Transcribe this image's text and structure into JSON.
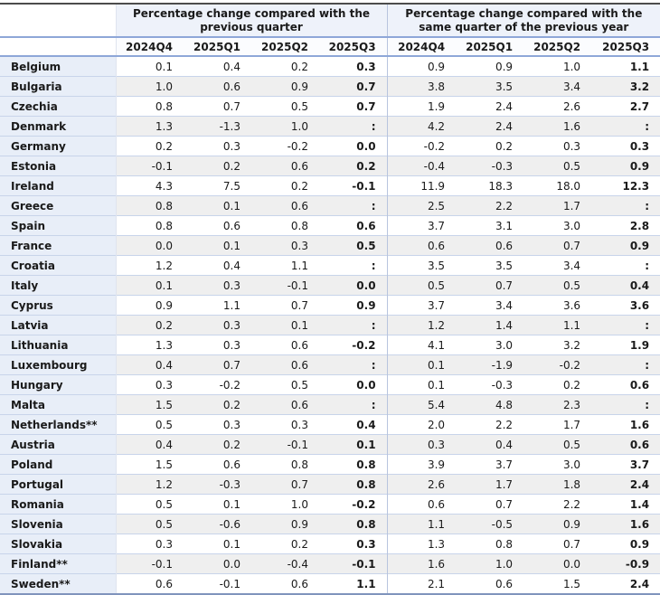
{
  "colors": {
    "top_border": "#4c4c4c",
    "header_separator_blue": "#8ea7d8",
    "group_header_bg": "#eef2fa",
    "quarter_header_bg": "#fbfcfe",
    "country_column_bg": "#e8eef8",
    "alt_row_bg": "#efefef",
    "row_line": "#c8d4ea",
    "group_divider": "#b8c4de",
    "bottom_border": "#8094bc"
  },
  "chart_data": {
    "type": "table",
    "missing_value_symbol": ":",
    "column_groups": [
      {
        "label": "Percentage change compared with the previous quarter",
        "lines": [
          "Percentage change compared with the",
          "previous quarter"
        ],
        "columns": [
          "2024Q4",
          "2025Q1",
          "2025Q2",
          "2025Q3"
        ]
      },
      {
        "label": "Percentage change compared with the same quarter of the previous year",
        "lines": [
          "Percentage change compared with the",
          "same quarter of the previous year"
        ],
        "columns": [
          "2024Q4",
          "2025Q1",
          "2025Q2",
          "2025Q3"
        ]
      }
    ],
    "rows": [
      {
        "country": "Belgium",
        "qoq": [
          "0.1",
          "0.4",
          "0.2",
          "0.3"
        ],
        "yoy": [
          "0.9",
          "0.9",
          "1.0",
          "1.1"
        ]
      },
      {
        "country": "Bulgaria",
        "qoq": [
          "1.0",
          "0.6",
          "0.9",
          "0.7"
        ],
        "yoy": [
          "3.8",
          "3.5",
          "3.4",
          "3.2"
        ]
      },
      {
        "country": "Czechia",
        "qoq": [
          "0.8",
          "0.7",
          "0.5",
          "0.7"
        ],
        "yoy": [
          "1.9",
          "2.4",
          "2.6",
          "2.7"
        ]
      },
      {
        "country": "Denmark",
        "qoq": [
          "1.3",
          "-1.3",
          "1.0",
          ":"
        ],
        "yoy": [
          "4.2",
          "2.4",
          "1.6",
          ":"
        ]
      },
      {
        "country": "Germany",
        "qoq": [
          "0.2",
          "0.3",
          "-0.2",
          "0.0"
        ],
        "yoy": [
          "-0.2",
          "0.2",
          "0.3",
          "0.3"
        ]
      },
      {
        "country": "Estonia",
        "qoq": [
          "-0.1",
          "0.2",
          "0.6",
          "0.2"
        ],
        "yoy": [
          "-0.4",
          "-0.3",
          "0.5",
          "0.9"
        ]
      },
      {
        "country": "Ireland",
        "qoq": [
          "4.3",
          "7.5",
          "0.2",
          "-0.1"
        ],
        "yoy": [
          "11.9",
          "18.3",
          "18.0",
          "12.3"
        ]
      },
      {
        "country": "Greece",
        "qoq": [
          "0.8",
          "0.1",
          "0.6",
          ":"
        ],
        "yoy": [
          "2.5",
          "2.2",
          "1.7",
          ":"
        ]
      },
      {
        "country": "Spain",
        "qoq": [
          "0.8",
          "0.6",
          "0.8",
          "0.6"
        ],
        "yoy": [
          "3.7",
          "3.1",
          "3.0",
          "2.8"
        ]
      },
      {
        "country": "France",
        "qoq": [
          "0.0",
          "0.1",
          "0.3",
          "0.5"
        ],
        "yoy": [
          "0.6",
          "0.6",
          "0.7",
          "0.9"
        ]
      },
      {
        "country": "Croatia",
        "qoq": [
          "1.2",
          "0.4",
          "1.1",
          ":"
        ],
        "yoy": [
          "3.5",
          "3.5",
          "3.4",
          ":"
        ]
      },
      {
        "country": "Italy",
        "qoq": [
          "0.1",
          "0.3",
          "-0.1",
          "0.0"
        ],
        "yoy": [
          "0.5",
          "0.7",
          "0.5",
          "0.4"
        ]
      },
      {
        "country": "Cyprus",
        "qoq": [
          "0.9",
          "1.1",
          "0.7",
          "0.9"
        ],
        "yoy": [
          "3.7",
          "3.4",
          "3.6",
          "3.6"
        ]
      },
      {
        "country": "Latvia",
        "qoq": [
          "0.2",
          "0.3",
          "0.1",
          ":"
        ],
        "yoy": [
          "1.2",
          "1.4",
          "1.1",
          ":"
        ]
      },
      {
        "country": "Lithuania",
        "qoq": [
          "1.3",
          "0.3",
          "0.6",
          "-0.2"
        ],
        "yoy": [
          "4.1",
          "3.0",
          "3.2",
          "1.9"
        ]
      },
      {
        "country": "Luxembourg",
        "qoq": [
          "0.4",
          "0.7",
          "0.6",
          ":"
        ],
        "yoy": [
          "0.1",
          "-1.9",
          "-0.2",
          ":"
        ]
      },
      {
        "country": "Hungary",
        "qoq": [
          "0.3",
          "-0.2",
          "0.5",
          "0.0"
        ],
        "yoy": [
          "0.1",
          "-0.3",
          "0.2",
          "0.6"
        ]
      },
      {
        "country": "Malta",
        "qoq": [
          "1.5",
          "0.2",
          "0.6",
          ":"
        ],
        "yoy": [
          "5.4",
          "4.8",
          "2.3",
          ":"
        ]
      },
      {
        "country": "Netherlands**",
        "qoq": [
          "0.5",
          "0.3",
          "0.3",
          "0.4"
        ],
        "yoy": [
          "2.0",
          "2.2",
          "1.7",
          "1.6"
        ]
      },
      {
        "country": "Austria",
        "qoq": [
          "0.4",
          "0.2",
          "-0.1",
          "0.1"
        ],
        "yoy": [
          "0.3",
          "0.4",
          "0.5",
          "0.6"
        ]
      },
      {
        "country": "Poland",
        "qoq": [
          "1.5",
          "0.6",
          "0.8",
          "0.8"
        ],
        "yoy": [
          "3.9",
          "3.7",
          "3.0",
          "3.7"
        ]
      },
      {
        "country": "Portugal",
        "qoq": [
          "1.2",
          "-0.3",
          "0.7",
          "0.8"
        ],
        "yoy": [
          "2.6",
          "1.7",
          "1.8",
          "2.4"
        ]
      },
      {
        "country": "Romania",
        "qoq": [
          "0.5",
          "0.1",
          "1.0",
          "-0.2"
        ],
        "yoy": [
          "0.6",
          "0.7",
          "2.2",
          "1.4"
        ]
      },
      {
        "country": "Slovenia",
        "qoq": [
          "0.5",
          "-0.6",
          "0.9",
          "0.8"
        ],
        "yoy": [
          "1.1",
          "-0.5",
          "0.9",
          "1.6"
        ]
      },
      {
        "country": "Slovakia",
        "qoq": [
          "0.3",
          "0.1",
          "0.2",
          "0.3"
        ],
        "yoy": [
          "1.3",
          "0.8",
          "0.7",
          "0.9"
        ]
      },
      {
        "country": "Finland**",
        "qoq": [
          "-0.1",
          "0.0",
          "-0.4",
          "-0.1"
        ],
        "yoy": [
          "1.6",
          "1.0",
          "0.0",
          "-0.9"
        ]
      },
      {
        "country": "Sweden**",
        "qoq": [
          "0.6",
          "-0.1",
          "0.6",
          "1.1"
        ],
        "yoy": [
          "2.1",
          "0.6",
          "1.5",
          "2.4"
        ]
      }
    ]
  }
}
